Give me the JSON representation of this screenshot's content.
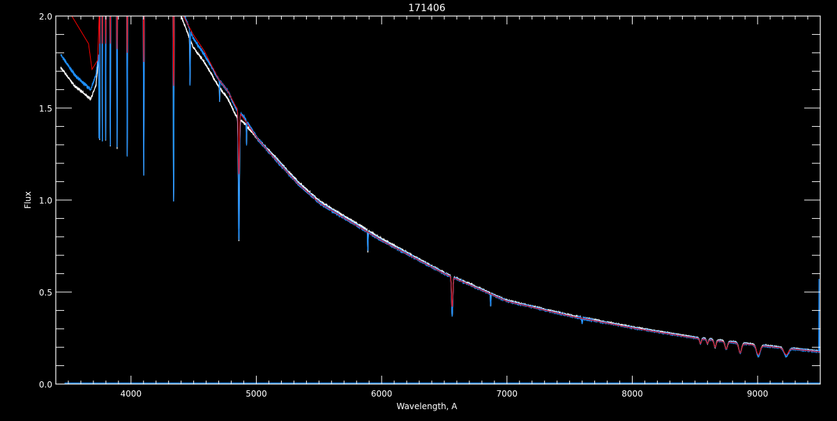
{
  "chart_data": {
    "type": "line",
    "title": "171406",
    "xlabel": "Wavelength, A",
    "ylabel": "Flux",
    "xlim": [
      3400,
      9500
    ],
    "ylim": [
      0,
      2
    ],
    "xticks": [
      4000,
      5000,
      6000,
      7000,
      8000,
      9000
    ],
    "xtick_labels": [
      "4000",
      "5000",
      "6000",
      "7000",
      "8000",
      "9000"
    ],
    "yticks": [
      0,
      0.5,
      1,
      1.5,
      2
    ],
    "ytick_labels": [
      "0.0",
      "0.5",
      "1.0",
      "1.5",
      "2.0"
    ],
    "x_minor_step": 100,
    "y_minor_step": 0.1,
    "grid": false,
    "background": "#000000",
    "series": [
      {
        "color": "#ffffff",
        "continuum": [
          [
            3440,
            1.72
          ],
          [
            3550,
            1.62
          ],
          [
            3678,
            1.55
          ],
          [
            3720,
            1.62
          ],
          [
            3745,
            1.8
          ],
          [
            3760,
            2.3
          ],
          [
            4380,
            2.3
          ],
          [
            4400,
            2.0
          ],
          [
            4496,
            1.83
          ],
          [
            4585,
            1.75
          ],
          [
            4696,
            1.62
          ],
          [
            4774,
            1.55
          ],
          [
            4835,
            1.46
          ],
          [
            4902,
            1.42
          ],
          [
            5013,
            1.33
          ],
          [
            5141,
            1.24
          ],
          [
            5330,
            1.1
          ],
          [
            5513,
            0.99
          ],
          [
            6000,
            0.79
          ],
          [
            6500,
            0.605
          ],
          [
            7000,
            0.455
          ],
          [
            7500,
            0.375
          ],
          [
            8000,
            0.31
          ],
          [
            8500,
            0.255
          ],
          [
            9000,
            0.215
          ],
          [
            9500,
            0.18
          ]
        ],
        "lines": [
          [
            3745,
            1.34,
            2
          ],
          [
            3750,
            1.33,
            2
          ],
          [
            3771,
            1.32,
            2
          ],
          [
            3798,
            1.32,
            2.5
          ],
          [
            3835,
            1.29,
            3
          ],
          [
            3889,
            1.28,
            3
          ],
          [
            3970,
            1.24,
            3
          ],
          [
            4102,
            1.14,
            3.5
          ],
          [
            4340,
            0.99,
            4
          ],
          [
            4471,
            1.63,
            3
          ],
          [
            4707,
            1.53,
            2
          ],
          [
            4861,
            0.78,
            6
          ],
          [
            4922,
            1.3,
            2
          ],
          [
            5890,
            0.72,
            3
          ],
          [
            6563,
            0.37,
            7
          ],
          [
            6870,
            0.42,
            3
          ],
          [
            7600,
            0.33,
            5
          ],
          [
            8544,
            0.22,
            10
          ],
          [
            8600,
            0.22,
            10
          ],
          [
            8661,
            0.2,
            12
          ],
          [
            8750,
            0.19,
            14
          ],
          [
            8861,
            0.17,
            16
          ],
          [
            9006,
            0.15,
            20
          ],
          [
            9229,
            0.15,
            24
          ]
        ]
      },
      {
        "color": "#1e90ff",
        "continuum": [
          [
            3440,
            1.79
          ],
          [
            3550,
            1.68
          ],
          [
            3678,
            1.6
          ],
          [
            3720,
            1.68
          ],
          [
            3745,
            1.82
          ],
          [
            3760,
            2.3
          ],
          [
            4380,
            2.3
          ],
          [
            4400,
            2.05
          ],
          [
            4496,
            1.88
          ],
          [
            4585,
            1.79
          ],
          [
            4696,
            1.66
          ],
          [
            4774,
            1.59
          ],
          [
            4835,
            1.5
          ],
          [
            4902,
            1.45
          ],
          [
            5013,
            1.33
          ],
          [
            5141,
            1.23
          ],
          [
            5330,
            1.09
          ],
          [
            5513,
            0.98
          ],
          [
            6000,
            0.78
          ],
          [
            6500,
            0.6
          ],
          [
            7000,
            0.45
          ],
          [
            7500,
            0.37
          ],
          [
            8000,
            0.305
          ],
          [
            8500,
            0.25
          ],
          [
            9000,
            0.21
          ],
          [
            9500,
            0.175
          ]
        ],
        "lines": [
          [
            3745,
            1.34,
            2
          ],
          [
            3750,
            1.33,
            2
          ],
          [
            3771,
            1.32,
            2
          ],
          [
            3798,
            1.32,
            2.5
          ],
          [
            3835,
            1.29,
            3
          ],
          [
            3889,
            1.28,
            3
          ],
          [
            3970,
            1.24,
            3
          ],
          [
            4102,
            1.14,
            3.5
          ],
          [
            4340,
            0.99,
            4
          ],
          [
            4471,
            1.63,
            3
          ],
          [
            4707,
            1.53,
            2
          ],
          [
            4861,
            0.78,
            6
          ],
          [
            4922,
            1.3,
            2
          ],
          [
            5890,
            0.72,
            3
          ],
          [
            6563,
            0.37,
            7
          ],
          [
            6870,
            0.42,
            3
          ],
          [
            7200,
            0.43,
            2
          ],
          [
            7600,
            0.33,
            5
          ],
          [
            8544,
            0.22,
            10
          ],
          [
            8600,
            0.22,
            10
          ],
          [
            8661,
            0.2,
            12
          ],
          [
            8750,
            0.19,
            14
          ],
          [
            8861,
            0.17,
            16
          ],
          [
            9006,
            0.15,
            20
          ],
          [
            9229,
            0.15,
            24
          ],
          [
            9490,
            0.57,
            1.2
          ]
        ],
        "error_level": 0.005
      },
      {
        "color": "#ff0000",
        "continuum": [
          [
            3450,
            2.15
          ],
          [
            3528,
            2.0
          ],
          [
            3661,
            1.85
          ],
          [
            3689,
            1.71
          ],
          [
            3734,
            1.76
          ],
          [
            3760,
            2.3
          ],
          [
            4390,
            2.3
          ],
          [
            4418,
            2.0
          ],
          [
            4496,
            1.9
          ],
          [
            4585,
            1.81
          ],
          [
            4696,
            1.66
          ],
          [
            4774,
            1.59
          ],
          [
            4835,
            1.51
          ],
          [
            4902,
            1.44
          ],
          [
            5013,
            1.33
          ],
          [
            5141,
            1.23
          ],
          [
            5330,
            1.09
          ],
          [
            5513,
            0.98
          ],
          [
            6000,
            0.78
          ],
          [
            6500,
            0.6
          ],
          [
            7000,
            0.45
          ],
          [
            7500,
            0.37
          ],
          [
            8000,
            0.305
          ],
          [
            8500,
            0.25
          ],
          [
            9000,
            0.21
          ],
          [
            9500,
            0.175
          ]
        ],
        "lines": [
          [
            3750,
            1.85,
            2
          ],
          [
            3771,
            1.85,
            2
          ],
          [
            3798,
            1.85,
            2.5
          ],
          [
            3835,
            1.85,
            3
          ],
          [
            3889,
            1.82,
            3
          ],
          [
            3970,
            1.8,
            3
          ],
          [
            4102,
            1.75,
            3.5
          ],
          [
            4340,
            1.62,
            5
          ],
          [
            4861,
            1.14,
            6
          ],
          [
            6563,
            0.42,
            7
          ],
          [
            8544,
            0.22,
            10
          ],
          [
            8600,
            0.22,
            10
          ],
          [
            8661,
            0.2,
            12
          ],
          [
            8750,
            0.19,
            14
          ],
          [
            8861,
            0.17,
            16
          ],
          [
            9006,
            0.16,
            20
          ],
          [
            9229,
            0.16,
            24
          ]
        ]
      }
    ]
  }
}
